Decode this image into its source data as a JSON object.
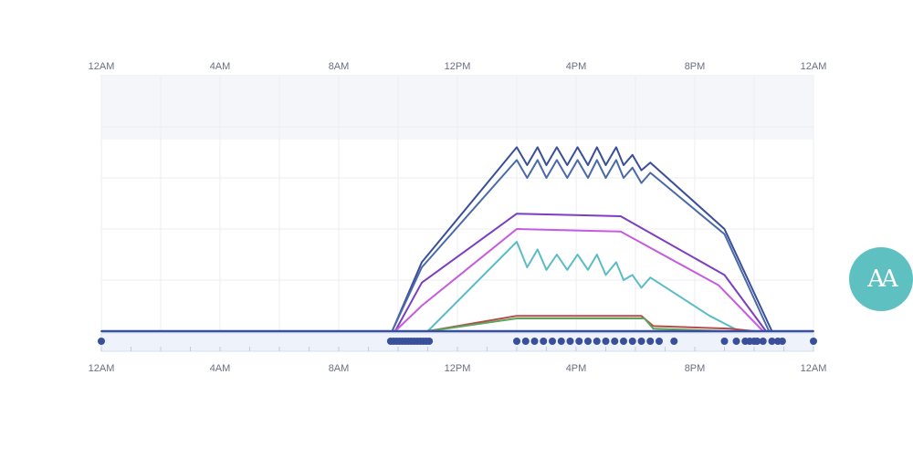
{
  "chart_data": {
    "type": "line",
    "x_unit": "hour of day",
    "xlim": [
      0,
      24
    ],
    "ylim": [
      0,
      100
    ],
    "tick_labels": [
      "12AM",
      "4AM",
      "8AM",
      "12PM",
      "4PM",
      "8PM",
      "12AM"
    ],
    "tick_hours": [
      0,
      4,
      8,
      12,
      16,
      20,
      24
    ],
    "grid": true,
    "shaded_band": [
      75,
      100
    ],
    "series": [
      {
        "color": "#3a4f9a",
        "points": [
          [
            0,
            0
          ],
          [
            9.8,
            0
          ],
          [
            10.8,
            27
          ],
          [
            14.0,
            72
          ],
          [
            14.35,
            65
          ],
          [
            14.7,
            72
          ],
          [
            15.0,
            65
          ],
          [
            15.35,
            72
          ],
          [
            15.7,
            65
          ],
          [
            16.05,
            72
          ],
          [
            16.4,
            65
          ],
          [
            16.7,
            72
          ],
          [
            17.0,
            65
          ],
          [
            17.35,
            72
          ],
          [
            17.6,
            65
          ],
          [
            17.9,
            69
          ],
          [
            18.2,
            63
          ],
          [
            18.5,
            66
          ],
          [
            21.0,
            40
          ],
          [
            22.6,
            0
          ],
          [
            24,
            0
          ]
        ]
      },
      {
        "color": "#4a6aa8",
        "points": [
          [
            0,
            0
          ],
          [
            9.8,
            0
          ],
          [
            10.8,
            25
          ],
          [
            14.0,
            67
          ],
          [
            14.35,
            60
          ],
          [
            14.7,
            67
          ],
          [
            15.0,
            60
          ],
          [
            15.35,
            67
          ],
          [
            15.7,
            60
          ],
          [
            16.05,
            67
          ],
          [
            16.4,
            60
          ],
          [
            16.7,
            67
          ],
          [
            17.0,
            60
          ],
          [
            17.35,
            67
          ],
          [
            17.6,
            60
          ],
          [
            17.9,
            64
          ],
          [
            18.2,
            58
          ],
          [
            18.5,
            62
          ],
          [
            21.0,
            38
          ],
          [
            22.5,
            0
          ],
          [
            24,
            0
          ]
        ]
      },
      {
        "color": "#7b3fbf",
        "points": [
          [
            0,
            0
          ],
          [
            9.9,
            0
          ],
          [
            10.8,
            19
          ],
          [
            14.0,
            46
          ],
          [
            17.5,
            45
          ],
          [
            21.0,
            22
          ],
          [
            22.4,
            0
          ],
          [
            24,
            0
          ]
        ]
      },
      {
        "color": "#c75be0",
        "points": [
          [
            0,
            0
          ],
          [
            9.9,
            0
          ],
          [
            10.8,
            10
          ],
          [
            14.0,
            40
          ],
          [
            17.5,
            39
          ],
          [
            20.8,
            18
          ],
          [
            22.3,
            0
          ],
          [
            24,
            0
          ]
        ]
      },
      {
        "color": "#5bbcc6",
        "points": [
          [
            0,
            0
          ],
          [
            11.0,
            0
          ],
          [
            14.0,
            35
          ],
          [
            14.35,
            25
          ],
          [
            14.7,
            32
          ],
          [
            15.0,
            24
          ],
          [
            15.35,
            30
          ],
          [
            15.7,
            24
          ],
          [
            16.05,
            30
          ],
          [
            16.4,
            24
          ],
          [
            16.7,
            30
          ],
          [
            17.0,
            22
          ],
          [
            17.35,
            27
          ],
          [
            17.6,
            20
          ],
          [
            17.9,
            22
          ],
          [
            18.2,
            17
          ],
          [
            18.5,
            21
          ],
          [
            20.5,
            6
          ],
          [
            21.5,
            0
          ],
          [
            24,
            0
          ]
        ]
      },
      {
        "color": "#b84a4a",
        "points": [
          [
            0,
            0
          ],
          [
            11.0,
            0
          ],
          [
            14.0,
            6
          ],
          [
            18.2,
            6
          ],
          [
            18.6,
            2
          ],
          [
            21.2,
            1
          ],
          [
            22.0,
            0
          ],
          [
            24,
            0
          ]
        ]
      },
      {
        "color": "#5aa65a",
        "points": [
          [
            0,
            0
          ],
          [
            11.0,
            0
          ],
          [
            14.0,
            5
          ],
          [
            18.3,
            5
          ],
          [
            18.6,
            1
          ],
          [
            21.0,
            0
          ],
          [
            24,
            0
          ]
        ]
      }
    ],
    "baseline_color": "#3a4f9a",
    "event_markers": [
      0,
      9.75,
      9.85,
      9.95,
      10.05,
      10.15,
      10.25,
      10.35,
      10.45,
      10.55,
      10.65,
      10.75,
      10.85,
      10.95,
      11.05,
      14.0,
      14.3,
      14.6,
      14.9,
      15.2,
      15.5,
      15.8,
      16.1,
      16.4,
      16.7,
      17.0,
      17.3,
      17.6,
      17.9,
      18.2,
      18.5,
      18.8,
      19.3,
      21.0,
      21.4,
      21.7,
      21.85,
      22.0,
      22.1,
      22.3,
      22.6,
      22.8,
      22.95,
      24.0
    ],
    "marker_color": "#3a4f9a"
  },
  "aa_button": {
    "label": "AA",
    "color": "#5fc0c1"
  }
}
